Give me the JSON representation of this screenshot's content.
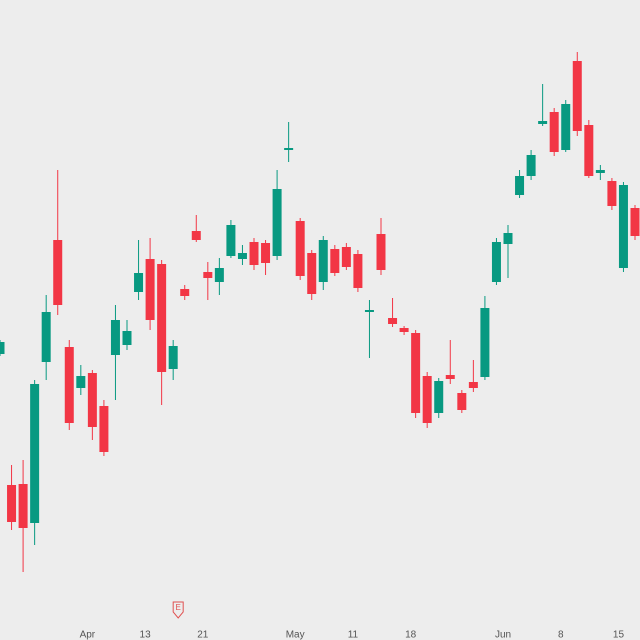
{
  "chart_data": {
    "type": "candlestick",
    "categories": [
      null,
      null,
      null,
      null,
      null,
      null,
      null,
      null,
      "Apr",
      null,
      null,
      null,
      null,
      "13",
      null,
      null,
      null,
      null,
      "21",
      null,
      null,
      null,
      null,
      null,
      null,
      null,
      "May",
      null,
      null,
      null,
      null,
      "11",
      null,
      null,
      null,
      null,
      "18",
      null,
      null,
      null,
      null,
      null,
      null,
      null,
      "Jun",
      null,
      null,
      null,
      null,
      "8",
      null,
      null,
      null,
      null,
      "15",
      null
    ],
    "open": [
      286,
      155,
      156,
      117,
      278,
      400,
      293,
      252,
      267,
      234,
      285,
      295,
      348,
      381,
      376,
      271,
      351,
      409,
      368,
      358,
      384,
      381,
      398,
      397,
      384,
      490,
      419,
      387,
      358,
      391,
      393,
      386,
      328,
      406,
      322,
      312,
      307,
      264,
      227,
      265,
      247,
      258,
      263,
      358,
      396,
      445,
      464,
      516,
      528,
      490,
      579,
      515,
      467,
      459,
      372,
      432
    ],
    "high": [
      300,
      175,
      180,
      260,
      345,
      470,
      300,
      275,
      270,
      240,
      335,
      320,
      400,
      402,
      380,
      300,
      355,
      425,
      378,
      382,
      420,
      395,
      402,
      400,
      470,
      518,
      422,
      390,
      404,
      395,
      397,
      390,
      340,
      422,
      342,
      314,
      310,
      268,
      262,
      300,
      250,
      280,
      344,
      402,
      415,
      470,
      490,
      556,
      532,
      540,
      588,
      520,
      475,
      462,
      458,
      435
    ],
    "low": [
      284,
      110,
      68,
      95,
      260,
      325,
      210,
      245,
      200,
      184,
      240,
      290,
      340,
      310,
      235,
      260,
      340,
      398,
      340,
      345,
      382,
      375,
      370,
      365,
      380,
      478,
      360,
      340,
      350,
      364,
      370,
      348,
      282,
      365,
      313,
      305,
      222,
      212,
      222,
      256,
      227,
      248,
      260,
      355,
      362,
      442,
      460,
      514,
      484,
      488,
      504,
      462,
      460,
      430,
      368,
      400
    ],
    "close": [
      298,
      118,
      112,
      256,
      328,
      335,
      217,
      264,
      213,
      188,
      320,
      309,
      367,
      320,
      268,
      294,
      344,
      400,
      362,
      372,
      415,
      387,
      375,
      377,
      451,
      492,
      364,
      346,
      400,
      367,
      373,
      352,
      330,
      370,
      316,
      308,
      227,
      217,
      259,
      261,
      230,
      252,
      332,
      398,
      407,
      464,
      485,
      519,
      488,
      536,
      509,
      464,
      470,
      434,
      455,
      404
    ],
    "up_color": "#089981",
    "down_color": "#f23645",
    "ylim": [
      0,
      640
    ],
    "annotations": [
      {
        "index": 15,
        "text": "E"
      }
    ]
  }
}
